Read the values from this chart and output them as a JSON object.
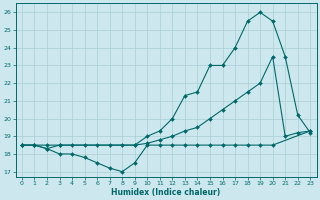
{
  "xlabel": "Humidex (Indice chaleur)",
  "bg_color": "#cce8ee",
  "grid_color": "#aacdd5",
  "line_color": "#006868",
  "xlim": [
    -0.5,
    23.5
  ],
  "ylim": [
    16.7,
    26.5
  ],
  "xticks": [
    0,
    1,
    2,
    3,
    4,
    5,
    6,
    7,
    8,
    9,
    10,
    11,
    12,
    13,
    14,
    15,
    16,
    17,
    18,
    19,
    20,
    21,
    22,
    23
  ],
  "yticks": [
    17,
    18,
    19,
    20,
    21,
    22,
    23,
    24,
    25,
    26
  ],
  "line1_x": [
    0,
    1,
    2,
    3,
    4,
    5,
    6,
    7,
    8,
    9,
    10,
    11,
    12,
    13,
    14,
    15,
    16,
    17,
    18,
    19,
    20,
    23
  ],
  "line1_y": [
    18.5,
    18.5,
    18.3,
    18.0,
    18.0,
    17.8,
    17.5,
    17.2,
    17.0,
    17.5,
    18.5,
    18.5,
    18.5,
    18.5,
    18.5,
    18.5,
    18.5,
    18.5,
    18.5,
    18.5,
    18.5,
    19.3
  ],
  "line2_x": [
    0,
    1,
    2,
    3,
    4,
    5,
    6,
    7,
    8,
    9,
    10,
    11,
    12,
    13,
    14,
    15,
    16,
    17,
    18,
    19,
    20,
    21,
    22,
    23
  ],
  "line2_y": [
    18.5,
    18.5,
    18.5,
    18.5,
    18.5,
    18.5,
    18.5,
    18.5,
    18.5,
    18.5,
    18.6,
    18.8,
    19.0,
    19.3,
    19.5,
    20.0,
    20.5,
    21.0,
    21.5,
    22.0,
    23.5,
    19.0,
    19.2,
    19.3
  ],
  "line3_x": [
    0,
    1,
    2,
    3,
    9,
    10,
    11,
    12,
    13,
    14,
    15,
    16,
    17,
    18,
    19,
    20,
    21,
    22,
    23
  ],
  "line3_y": [
    18.5,
    18.5,
    18.3,
    18.5,
    18.5,
    19.0,
    19.3,
    20.0,
    21.3,
    21.5,
    23.0,
    23.0,
    24.0,
    25.5,
    26.0,
    25.5,
    23.5,
    20.2,
    19.2
  ]
}
